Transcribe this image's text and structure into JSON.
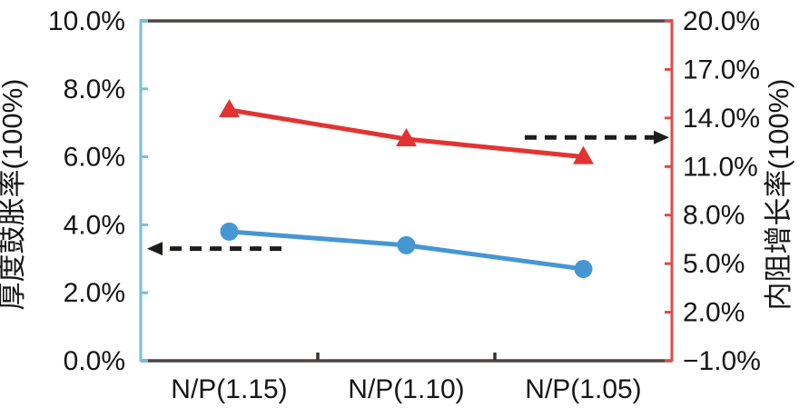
{
  "chart_data": {
    "type": "line",
    "title": "",
    "legend": "none",
    "grid": "off",
    "background": "#ffffff",
    "categories": [
      "N/P(1.15)",
      "N/P(1.10)",
      "N/P(1.05)"
    ],
    "series": [
      {
        "name": "厚度鼓胀率",
        "axis": "left",
        "marker": "circle",
        "color": "#4597d3",
        "values_pct": [
          3.8,
          3.4,
          2.7
        ]
      },
      {
        "name": "内阻增长率",
        "axis": "right",
        "marker": "triangle-up",
        "color": "#e13431",
        "values_pct": [
          14.5,
          12.7,
          11.6
        ]
      }
    ],
    "left_axis": {
      "label": "厚度鼓胀率(100%)",
      "min": 0,
      "max": 10,
      "tick_values": [
        0,
        2,
        4,
        6,
        8,
        10
      ],
      "tick_labels": [
        "0.0%",
        "2.0%",
        "4.0%",
        "6.0%",
        "8.0%",
        "10.0%"
      ],
      "spine_color": "#79bfda"
    },
    "right_axis": {
      "label": "内阻增长率(100%)",
      "min": -1,
      "max": 20,
      "tick_values": [
        -1,
        2,
        5,
        8,
        11,
        14,
        17,
        20
      ],
      "tick_labels": [
        "−1.0%",
        "2.0%",
        "5.0%",
        "8.0%",
        "11.0%",
        "14.0%",
        "17.0%",
        "20.0%"
      ],
      "spine_color": "#e04a46"
    },
    "x_axis": {
      "spine_color": "#4a4543",
      "tick_color": "#34312f",
      "boundary_ticks": true
    },
    "annotations": [
      {
        "type": "dashed-arrow",
        "points_to": "left-axis",
        "direction": "left",
        "axis": "left",
        "y_value_pct": 3.3,
        "x_start_frac": 0.265,
        "x_tip_frac": 0.012,
        "color": "#1f1d1b"
      },
      {
        "type": "dashed-arrow",
        "points_to": "right-axis",
        "direction": "right",
        "axis": "right",
        "y_value_pct": 12.8,
        "x_start_frac": 0.723,
        "x_tip_frac": 0.995,
        "color": "#1f1d1b"
      }
    ]
  }
}
